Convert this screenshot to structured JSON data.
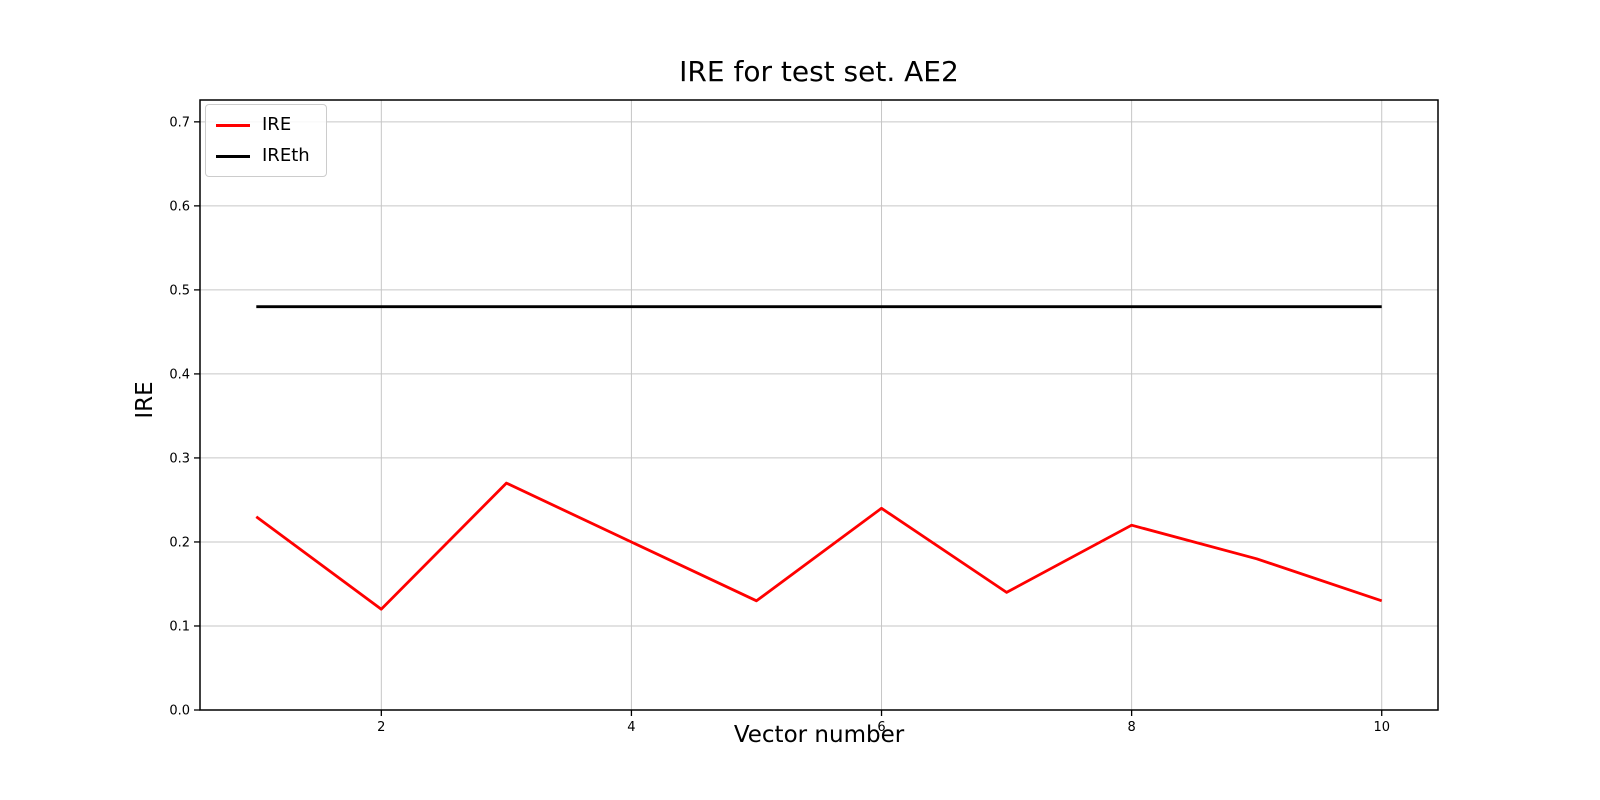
{
  "page": {
    "background": "#ffffff"
  },
  "chart_data": {
    "type": "line",
    "title": "IRE for test set. AE2",
    "xlabel": "Vector number",
    "ylabel": "IRE",
    "x": [
      1,
      2,
      3,
      4,
      5,
      6,
      7,
      8,
      9,
      10
    ],
    "series": [
      {
        "name": "IRE",
        "color": "#ff0000",
        "values": [
          0.23,
          0.12,
          0.27,
          0.2,
          0.13,
          0.24,
          0.14,
          0.22,
          0.18,
          0.13
        ]
      },
      {
        "name": "IREth",
        "color": "#000000",
        "values": [
          0.48,
          0.48,
          0.48,
          0.48,
          0.48,
          0.48,
          0.48,
          0.48,
          0.48,
          0.48
        ]
      }
    ],
    "xlim": [
      0.55,
      10.45
    ],
    "ylim": [
      0.0,
      0.726
    ],
    "x_ticks": {
      "values": [
        2,
        4,
        6,
        8,
        10
      ],
      "labels": [
        "2",
        "4",
        "6",
        "8",
        "10"
      ]
    },
    "y_ticks": {
      "values": [
        0.0,
        0.1,
        0.2,
        0.3,
        0.4,
        0.5,
        0.6,
        0.7
      ],
      "labels": [
        "0.0",
        "0.1",
        "0.2",
        "0.3",
        "0.4",
        "0.5",
        "0.6",
        "0.7"
      ]
    },
    "grid": true,
    "legend_position": "upper left",
    "colors": {
      "grid": "#c6c6c6",
      "axis": "#000000",
      "text": "#000000",
      "plot_background": "#ffffff"
    }
  }
}
